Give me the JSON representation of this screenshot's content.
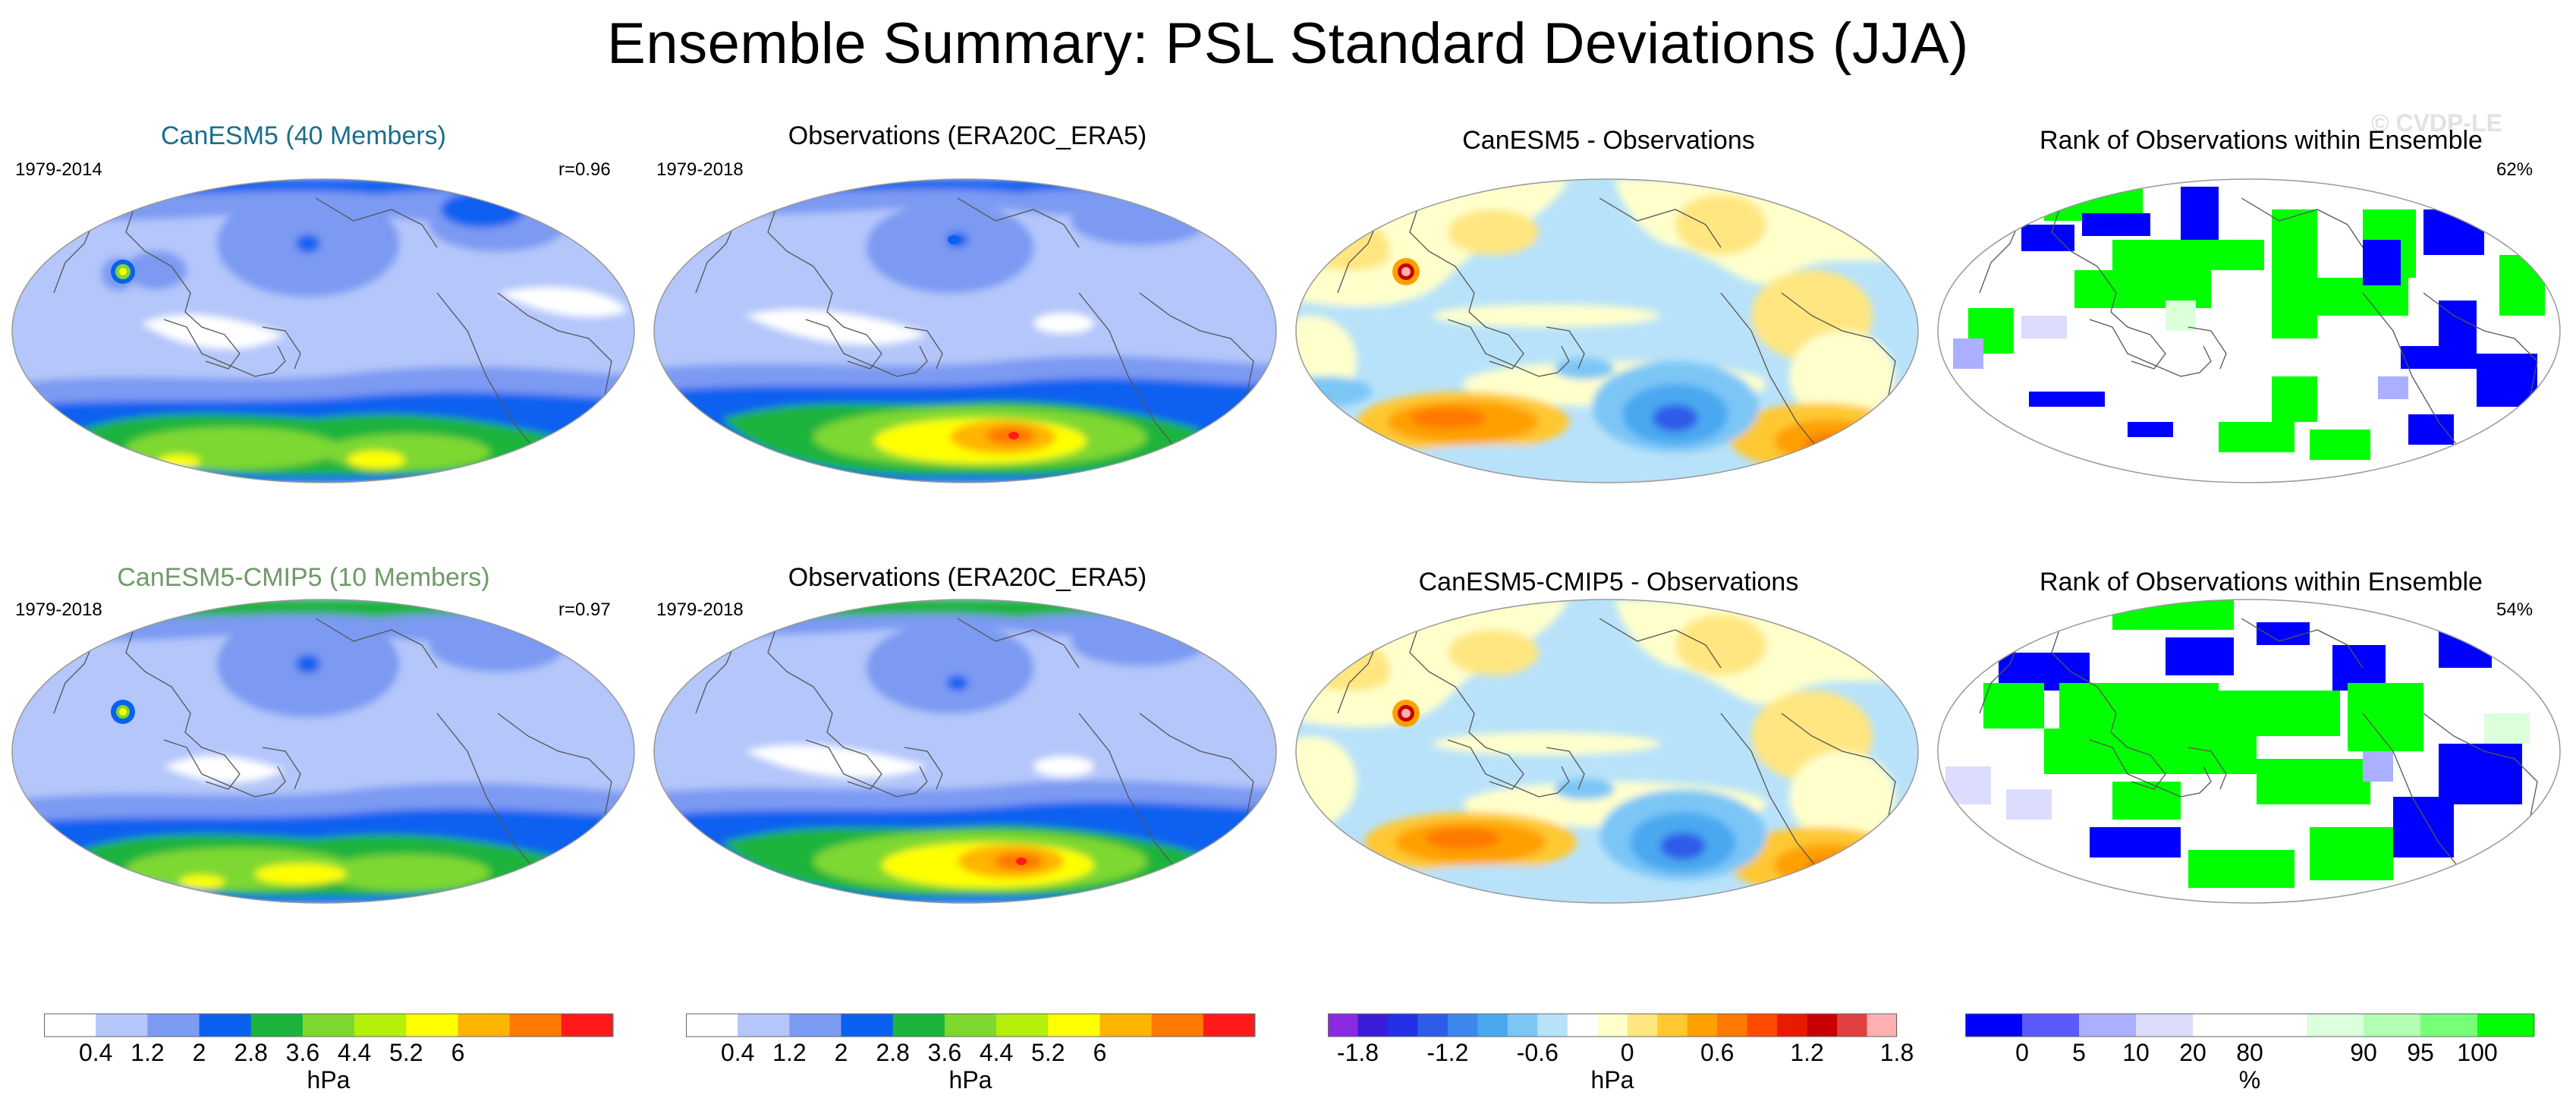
{
  "title": "Ensemble Summary: PSL Standard Deviations (JJA)",
  "watermark": "© CVDP-LE",
  "rows": [
    {
      "model": {
        "title": "CanESM5 (40 Members)",
        "years": "1979-2014",
        "r": "r=0.96"
      },
      "obs": {
        "title": "Observations (ERA20C_ERA5)",
        "years": "1979-2018"
      },
      "diff": {
        "title": "CanESM5 - Observations"
      },
      "rank": {
        "title": "Rank of Observations within Ensemble",
        "pct": "62%"
      }
    },
    {
      "model": {
        "title": "CanESM5-CMIP5 (10 Members)",
        "years": "1979-2018",
        "r": "r=0.97"
      },
      "obs": {
        "title": "Observations (ERA20C_ERA5)",
        "years": "1979-2018"
      },
      "diff": {
        "title": "CanESM5-CMIP5 - Observations"
      },
      "rank": {
        "title": "Rank of Observations within Ensemble",
        "pct": "54%"
      }
    }
  ],
  "colorbars": [
    {
      "unit": "hPa",
      "colors": [
        "#ffffff",
        "#b4c6fa",
        "#7b9af2",
        "#0a61f0",
        "#1cb43c",
        "#7ed830",
        "#b4f00a",
        "#ffff00",
        "#ffb400",
        "#ff7800",
        "#ff1a1a"
      ],
      "ticks": [
        "0.4",
        "1.2",
        "2",
        "2.8",
        "3.6",
        "4.4",
        "5.2",
        "6"
      ]
    },
    {
      "unit": "hPa",
      "colors": [
        "#ffffff",
        "#b4c6fa",
        "#7b9af2",
        "#0a61f0",
        "#1cb43c",
        "#7ed830",
        "#b4f00a",
        "#ffff00",
        "#ffb400",
        "#ff7800",
        "#ff1a1a"
      ],
      "ticks": [
        "0.4",
        "1.2",
        "2",
        "2.8",
        "3.6",
        "4.4",
        "5.2",
        "6"
      ]
    },
    {
      "unit": "hPa",
      "colors": [
        "#8a2be2",
        "#3a1cd6",
        "#2430e6",
        "#2e5ce8",
        "#3c86ec",
        "#4aa8f0",
        "#7cc6f6",
        "#b8e2fa",
        "#ffffff",
        "#ffffcc",
        "#ffe680",
        "#ffc830",
        "#ffa000",
        "#ff7800",
        "#ff4a00",
        "#e81a00",
        "#c80000",
        "#e04040",
        "#ffb0b0"
      ],
      "ticks": [
        "-1.8",
        "-1.2",
        "-0.6",
        "0",
        "0.6",
        "1.2",
        "1.8"
      ]
    },
    {
      "unit": "%",
      "colors": [
        "#0000ff",
        "#5a5aff",
        "#aab0ff",
        "#dcdcff",
        "#ffffff",
        "#ffffff",
        "#dcffdc",
        "#b4ffb4",
        "#78ff78",
        "#00ff00"
      ],
      "ticks": [
        "0",
        "5",
        "10",
        "20",
        "80",
        "90",
        "95",
        "100"
      ]
    }
  ]
}
